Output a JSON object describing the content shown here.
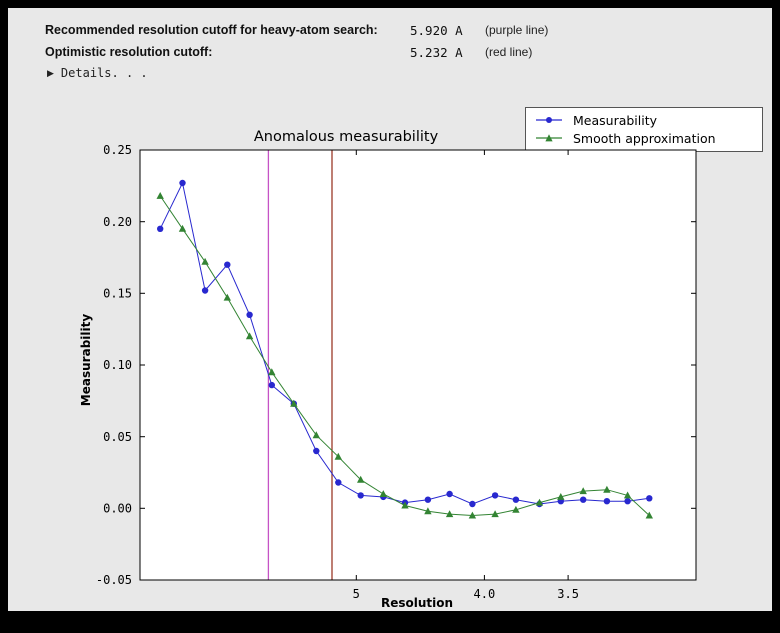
{
  "header": {
    "rows": [
      {
        "label": "Recommended resolution cutoff for heavy-atom search:",
        "value": "5.920 A",
        "note": "(purple line)"
      },
      {
        "label": "Optimistic resolution cutoff:",
        "value": "5.232 A",
        "note": "(red line)"
      }
    ],
    "details_label": "Details. . ."
  },
  "chart_data": {
    "type": "line",
    "title": "Anomalous measurability",
    "xlabel": "Resolution",
    "ylabel": "Measurability",
    "ylim": [
      -0.05,
      0.25
    ],
    "yticks": [
      -0.05,
      0.0,
      0.05,
      0.1,
      0.15,
      0.2,
      0.25
    ],
    "ytick_labels": [
      "-0.05",
      "0.00",
      "0.05",
      "0.10",
      "0.15",
      "0.20",
      "0.25"
    ],
    "xlim_d": [
      7.8,
      2.9
    ],
    "xticks": [
      {
        "label": "5",
        "d": 5.0
      },
      {
        "label": "4.0",
        "d": 4.0
      },
      {
        "label": "3.5",
        "d": 3.5
      }
    ],
    "x_d": [
      7.45,
      7.09,
      6.75,
      6.44,
      6.15,
      5.88,
      5.63,
      5.39,
      5.17,
      4.96,
      4.76,
      4.58,
      4.4,
      4.24,
      4.08,
      3.93,
      3.8,
      3.66,
      3.54,
      3.42,
      3.3,
      3.2,
      3.1
    ],
    "series": [
      {
        "name": "Measurability",
        "color": "#2828cf",
        "marker": "circle",
        "values": [
          0.195,
          0.227,
          0.152,
          0.17,
          0.135,
          0.086,
          0.073,
          0.04,
          0.018,
          0.009,
          0.008,
          0.004,
          0.006,
          0.01,
          0.003,
          0.009,
          0.006,
          0.003,
          0.005,
          0.006,
          0.005,
          0.005,
          0.007
        ]
      },
      {
        "name": "Smooth approximation",
        "color": "#338433",
        "marker": "triangle",
        "values": [
          0.218,
          0.195,
          0.172,
          0.147,
          0.12,
          0.095,
          0.073,
          0.051,
          0.036,
          0.02,
          0.01,
          0.002,
          -0.002,
          -0.004,
          -0.005,
          -0.004,
          -0.001,
          0.004,
          0.008,
          0.012,
          0.013,
          0.009,
          -0.005
        ]
      }
    ],
    "vlines": [
      {
        "d": 5.92,
        "color": "#c653c6",
        "name": "purple-cutoff-line"
      },
      {
        "d": 5.232,
        "color": "#9c3a28",
        "name": "red-cutoff-line"
      }
    ],
    "legend": {
      "position": "top-right"
    }
  }
}
